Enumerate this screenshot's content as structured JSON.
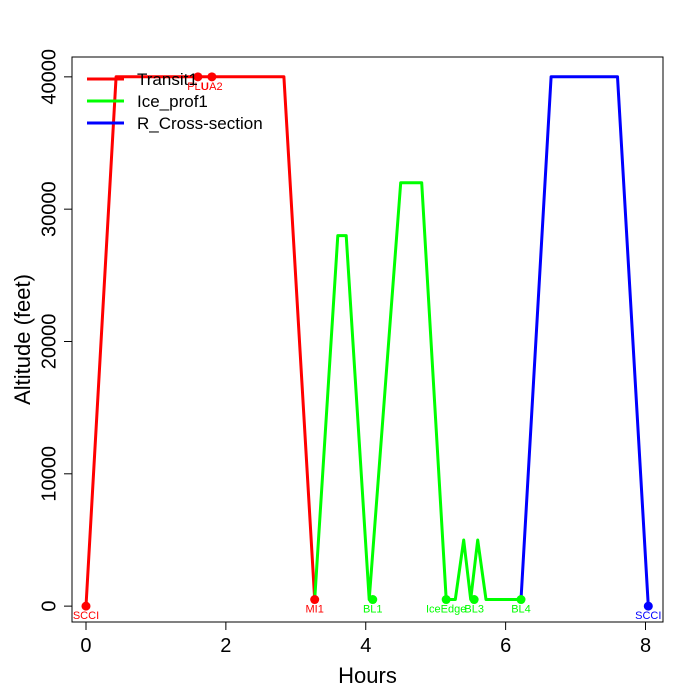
{
  "chart_data": {
    "type": "line",
    "title": "",
    "xlabel": "Hours",
    "ylabel": "Altitude (feet)",
    "xlim": [
      -0.2,
      8.25
    ],
    "ylim": [
      -1200,
      41500
    ],
    "xticks": [
      0,
      2,
      4,
      6,
      8
    ],
    "yticks": [
      0,
      10000,
      20000,
      30000,
      40000
    ],
    "grid": false,
    "legend": "top-left",
    "series": [
      {
        "name": "Transit1",
        "color": "#ff0000",
        "x": [
          0,
          0.43,
          2.83,
          3.27
        ],
        "y": [
          0,
          40000,
          40000,
          500
        ]
      },
      {
        "name": "Ice_prof1",
        "color": "#00ff00",
        "x": [
          3.27,
          3.6,
          3.72,
          4.05,
          4.5,
          4.8,
          5.15,
          5.28,
          5.4,
          5.5,
          5.6,
          5.72,
          6.22
        ],
        "y": [
          500,
          28000,
          28000,
          500,
          32000,
          32000,
          500,
          500,
          5000,
          500,
          5000,
          500,
          500
        ]
      },
      {
        "name": "R_Cross-section",
        "color": "#0000ff",
        "x": [
          6.22,
          6.65,
          7.6,
          8.04
        ],
        "y": [
          500,
          40000,
          40000,
          0
        ]
      }
    ],
    "waypoints": [
      {
        "label": "SCCI",
        "x": 0,
        "y": 0,
        "color": "#ff0000"
      },
      {
        "label": "PLU",
        "x": 1.6,
        "y": 40000,
        "color": "#ff0000"
      },
      {
        "label": "UA2",
        "x": 1.8,
        "y": 40000,
        "color": "#ff0000"
      },
      {
        "label": "MI1",
        "x": 3.27,
        "y": 500,
        "color": "#ff0000"
      },
      {
        "label": "BL1",
        "x": 4.1,
        "y": 500,
        "color": "#00ff00"
      },
      {
        "label": "IceEdge",
        "x": 5.15,
        "y": 500,
        "color": "#00ff00"
      },
      {
        "label": "BL3",
        "x": 5.55,
        "y": 500,
        "color": "#00ff00"
      },
      {
        "label": "BL4",
        "x": 6.22,
        "y": 500,
        "color": "#00ff00"
      },
      {
        "label": "SCCI",
        "x": 8.04,
        "y": 0,
        "color": "#0000ff"
      }
    ]
  }
}
